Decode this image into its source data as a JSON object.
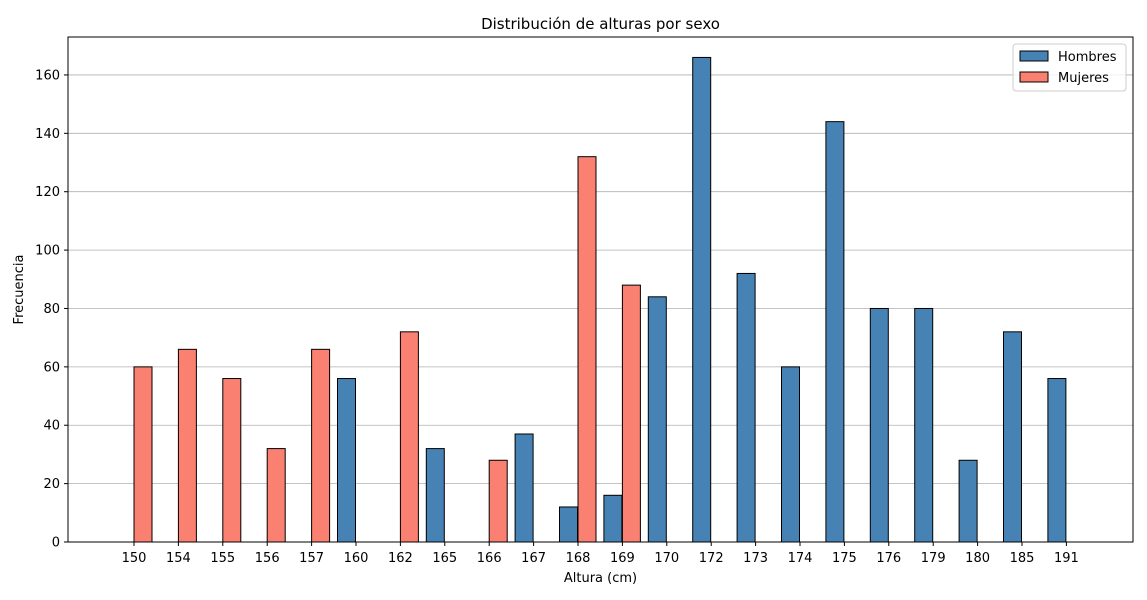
{
  "chart_data": {
    "type": "bar",
    "title": "Distribución de alturas por sexo",
    "xlabel": "Altura (cm)",
    "ylabel": "Frecuencia",
    "categories": [
      "150",
      "154",
      "155",
      "156",
      "157",
      "160",
      "162",
      "165",
      "166",
      "167",
      "168",
      "169",
      "170",
      "172",
      "173",
      "174",
      "175",
      "176",
      "179",
      "180",
      "185",
      "191"
    ],
    "series": [
      {
        "name": "Hombres",
        "color": "#4682b4",
        "values": [
          0,
          0,
          0,
          0,
          0,
          56,
          0,
          32,
          0,
          37,
          12,
          16,
          84,
          166,
          92,
          60,
          144,
          80,
          80,
          28,
          72,
          56
        ]
      },
      {
        "name": "Mujeres",
        "color": "#fa8072",
        "values": [
          60,
          66,
          56,
          32,
          66,
          0,
          72,
          0,
          28,
          0,
          132,
          88,
          0,
          0,
          0,
          0,
          0,
          0,
          0,
          0,
          0,
          0
        ]
      }
    ],
    "ylim": [
      0,
      173
    ],
    "yticks": [
      0,
      20,
      40,
      60,
      80,
      100,
      120,
      140,
      160
    ],
    "grid": "horizontal",
    "legend_position": "top-right"
  }
}
